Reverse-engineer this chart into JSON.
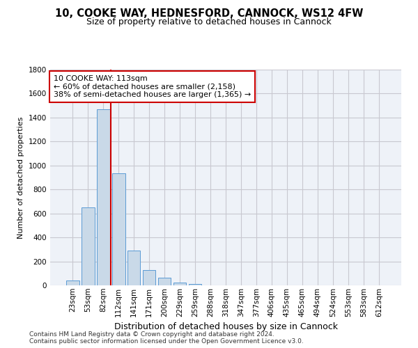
{
  "title_line1": "10, COOKE WAY, HEDNESFORD, CANNOCK, WS12 4FW",
  "title_line2": "Size of property relative to detached houses in Cannock",
  "xlabel": "Distribution of detached houses by size in Cannock",
  "ylabel": "Number of detached properties",
  "categories": [
    "23sqm",
    "53sqm",
    "82sqm",
    "112sqm",
    "141sqm",
    "171sqm",
    "200sqm",
    "229sqm",
    "259sqm",
    "288sqm",
    "318sqm",
    "347sqm",
    "377sqm",
    "406sqm",
    "435sqm",
    "465sqm",
    "494sqm",
    "524sqm",
    "553sqm",
    "583sqm",
    "612sqm"
  ],
  "values": [
    38,
    650,
    1470,
    935,
    290,
    125,
    62,
    22,
    12,
    0,
    0,
    0,
    0,
    0,
    0,
    0,
    0,
    0,
    0,
    0,
    0
  ],
  "bar_color": "#c9d9e8",
  "bar_edge_color": "#5b9bd5",
  "vline_index": 2.5,
  "vline_color": "#cc0000",
  "annotation_text": "10 COOKE WAY: 113sqm\n← 60% of detached houses are smaller (2,158)\n38% of semi-detached houses are larger (1,365) →",
  "annotation_box_color": "#cc0000",
  "ylim": [
    0,
    1800
  ],
  "yticks": [
    0,
    200,
    400,
    600,
    800,
    1000,
    1200,
    1400,
    1600,
    1800
  ],
  "grid_color": "#c8c8d0",
  "bg_color": "#eef2f8",
  "footer_line1": "Contains HM Land Registry data © Crown copyright and database right 2024.",
  "footer_line2": "Contains public sector information licensed under the Open Government Licence v3.0.",
  "title_fontsize": 10.5,
  "subtitle_fontsize": 9,
  "ylabel_fontsize": 8,
  "xlabel_fontsize": 9,
  "tick_fontsize": 7.5,
  "annotation_fontsize": 8,
  "footer_fontsize": 6.5,
  "bar_width": 0.85
}
